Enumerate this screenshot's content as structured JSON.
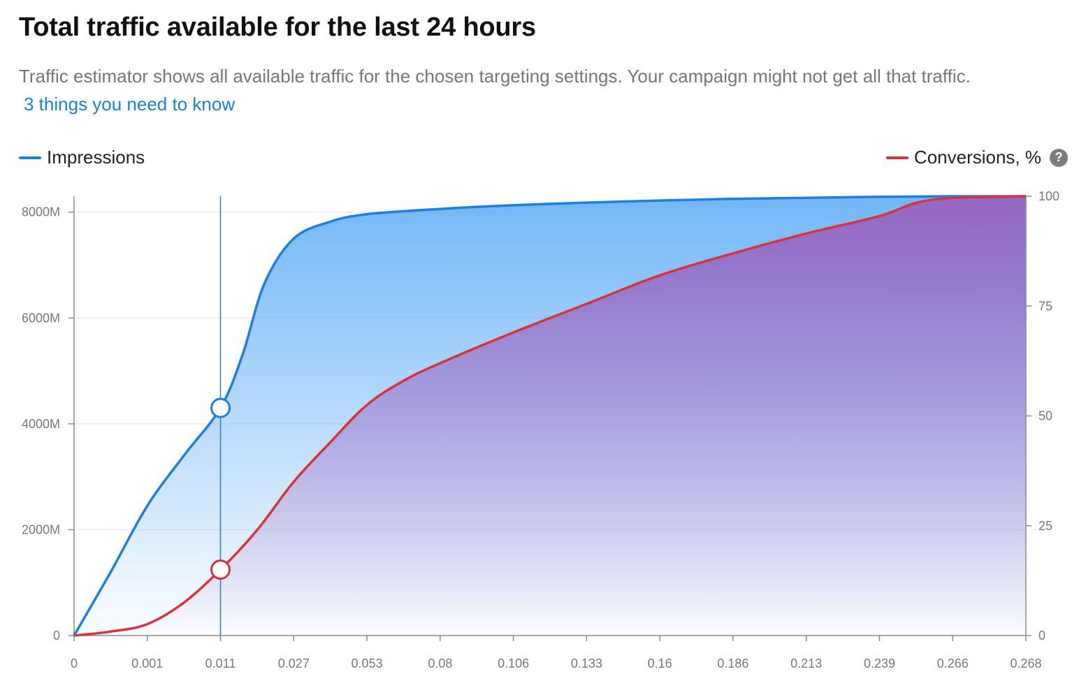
{
  "header": {
    "title": "Total traffic available for the last 24 hours",
    "subtitle": "Traffic estimator shows all available traffic for the chosen targeting settings. Your campaign might not get all that traffic.",
    "link_text": "3 things you need to know"
  },
  "legend": {
    "left_label": "Impressions",
    "right_label": "Conversions, %",
    "help_icon": "question-circle-icon",
    "help_glyph": "?"
  },
  "colors": {
    "impressions": "#1a7fe0",
    "conversions": "#d8323a",
    "impressions_fill": "#5aaaf5",
    "conversions_fill": "#9a5cbc",
    "link": "#1a7fd6"
  },
  "chart_data": {
    "type": "area",
    "x_tick_labels": [
      "0",
      "0.001",
      "0.011",
      "0.027",
      "0.053",
      "0.08",
      "0.106",
      "0.133",
      "0.16",
      "0.186",
      "0.213",
      "0.239",
      "0.266",
      "0.268"
    ],
    "x_axis_scale": "categorical-ticks (non-linear)",
    "left_axis": {
      "ticks": [
        "0",
        "2000M",
        "4000M",
        "6000M",
        "8000M"
      ],
      "range": [
        0,
        8300
      ]
    },
    "right_axis": {
      "ticks": [
        "0",
        "25",
        "50",
        "75",
        "100"
      ],
      "range": [
        0,
        100
      ]
    },
    "series": [
      {
        "name": "Impressions",
        "axis": "left",
        "points": [
          [
            0,
            0
          ],
          [
            0.5,
            1200
          ],
          [
            1,
            2450
          ],
          [
            1.5,
            3400
          ],
          [
            2,
            4300
          ],
          [
            2.3,
            5300
          ],
          [
            2.6,
            6650
          ],
          [
            3,
            7500
          ],
          [
            3.5,
            7820
          ],
          [
            4,
            7960
          ],
          [
            5,
            8060
          ],
          [
            6,
            8130
          ],
          [
            7,
            8180
          ],
          [
            8,
            8220
          ],
          [
            9,
            8250
          ],
          [
            10,
            8270
          ],
          [
            11,
            8290
          ],
          [
            12,
            8300
          ],
          [
            13,
            8300
          ]
        ]
      },
      {
        "name": "Conversions, %",
        "axis": "right",
        "points": [
          [
            0,
            0
          ],
          [
            0.5,
            0.9
          ],
          [
            1,
            2.6
          ],
          [
            1.5,
            7.5
          ],
          [
            2,
            15
          ],
          [
            2.5,
            24
          ],
          [
            3,
            35
          ],
          [
            3.5,
            44
          ],
          [
            4,
            52.5
          ],
          [
            4.5,
            58
          ],
          [
            5,
            62
          ],
          [
            6,
            69
          ],
          [
            7,
            75.5
          ],
          [
            8,
            82
          ],
          [
            9,
            87
          ],
          [
            10,
            91.5
          ],
          [
            11,
            95.5
          ],
          [
            11.5,
            98.5
          ],
          [
            12,
            99.6
          ],
          [
            13,
            100
          ]
        ]
      }
    ],
    "selected": {
      "x_label": "0.011",
      "impressions": 4300,
      "conversions": 15
    },
    "grid": "horizontal"
  }
}
